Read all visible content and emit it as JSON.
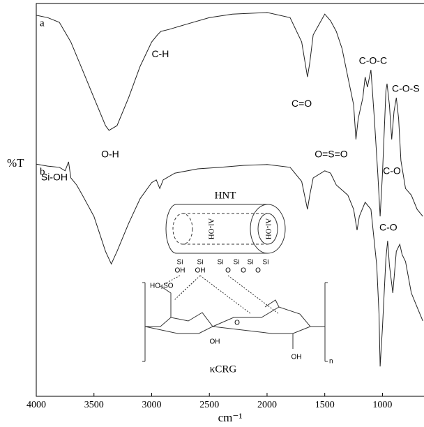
{
  "chart_data": {
    "type": "line",
    "xlabel": "cm⁻¹",
    "ylabel": "%T",
    "xlim": [
      4000,
      640
    ],
    "ylim": [
      0,
      100
    ],
    "xticks": [
      4000,
      3500,
      3000,
      2500,
      2000,
      1500,
      1000
    ],
    "series": [
      {
        "name": "a",
        "color": "#222222",
        "x": [
          4000,
          3900,
          3800,
          3700,
          3600,
          3500,
          3400,
          3370,
          3300,
          3200,
          3100,
          3000,
          2950,
          2920,
          2850,
          2700,
          2500,
          2300,
          2000,
          1800,
          1700,
          1650,
          1630,
          1600,
          1500,
          1450,
          1400,
          1350,
          1300,
          1250,
          1230,
          1210,
          1170,
          1150,
          1130,
          1100,
          1070,
          1040,
          1020,
          1000,
          970,
          960,
          940,
          920,
          900,
          880,
          860,
          840,
          800,
          750,
          700,
          650
        ],
        "values": [
          97.0,
          96.4,
          95.2,
          90.2,
          83.1,
          76.0,
          68.9,
          67.7,
          68.9,
          76.0,
          84.0,
          90.2,
          92.0,
          92.9,
          93.4,
          94.7,
          96.4,
          97.3,
          97.7,
          96.4,
          90.2,
          81.3,
          84.9,
          92.0,
          97.3,
          95.6,
          92.9,
          88.5,
          81.3,
          74.2,
          65.4,
          70.7,
          76.0,
          81.3,
          78.7,
          83.1,
          70.7,
          56.5,
          45.8,
          56.5,
          77.8,
          79.6,
          74.2,
          65.4,
          72.5,
          76.0,
          70.7,
          60.0,
          52.9,
          51.2,
          47.6,
          45.8
        ]
      },
      {
        "name": "b",
        "color": "#222222",
        "x": [
          4000,
          3900,
          3800,
          3750,
          3720,
          3700,
          3650,
          3600,
          3500,
          3400,
          3350,
          3300,
          3200,
          3100,
          3000,
          2960,
          2930,
          2900,
          2800,
          2600,
          2400,
          2200,
          2000,
          1800,
          1700,
          1650,
          1630,
          1600,
          1500,
          1450,
          1400,
          1300,
          1250,
          1220,
          1200,
          1150,
          1100,
          1050,
          1030,
          1020,
          1000,
          970,
          955,
          940,
          910,
          880,
          850,
          830,
          800,
          750,
          700,
          650
        ],
        "values": [
          59.1,
          58.6,
          58.3,
          57.4,
          59.7,
          55.6,
          53.8,
          51.2,
          45.8,
          36.9,
          33.7,
          36.9,
          44.0,
          50.3,
          54.4,
          55.1,
          52.9,
          55.1,
          56.8,
          57.9,
          58.3,
          58.8,
          59.0,
          58.3,
          54.7,
          47.6,
          51.2,
          55.6,
          57.4,
          56.8,
          53.8,
          51.2,
          47.6,
          42.3,
          45.8,
          49.4,
          47.6,
          33.4,
          21.0,
          7.6,
          17.4,
          35.2,
          39.6,
          33.4,
          26.3,
          36.9,
          38.7,
          36.1,
          34.3,
          26.3,
          22.7,
          19.2
        ]
      }
    ],
    "annotations": [
      {
        "text": "C-H",
        "x": 2925,
        "y": 87.0
      },
      {
        "text": "O-H",
        "x": 3360,
        "y": 61.5
      },
      {
        "text": "C=O",
        "x": 1700,
        "y": 74.4
      },
      {
        "text": "C-O-C",
        "x": 1082,
        "y": 85.3
      },
      {
        "text": "C-O-S",
        "x": 798,
        "y": 78.2
      },
      {
        "text": "O=S=O",
        "x": 1444,
        "y": 61.5
      },
      {
        "text": "C-O",
        "x": 918,
        "y": 57.2
      },
      {
        "text": "Si-OH",
        "x": 3843,
        "y": 55.6
      },
      {
        "text": "C-O",
        "x": 949,
        "y": 42.8
      }
    ]
  },
  "inset": {
    "title": "HNT",
    "polymer": "κCRG",
    "aloh": "Al-OH",
    "si": [
      "Si",
      "Si",
      "Si",
      "Si",
      "Si",
      "Si"
    ],
    "oh": [
      "OH",
      "OH",
      "OH",
      "OH"
    ],
    "bridge": [
      "O",
      "O",
      "O",
      "O"
    ],
    "sulfate": "HO₃SO",
    "repeat": "n"
  }
}
